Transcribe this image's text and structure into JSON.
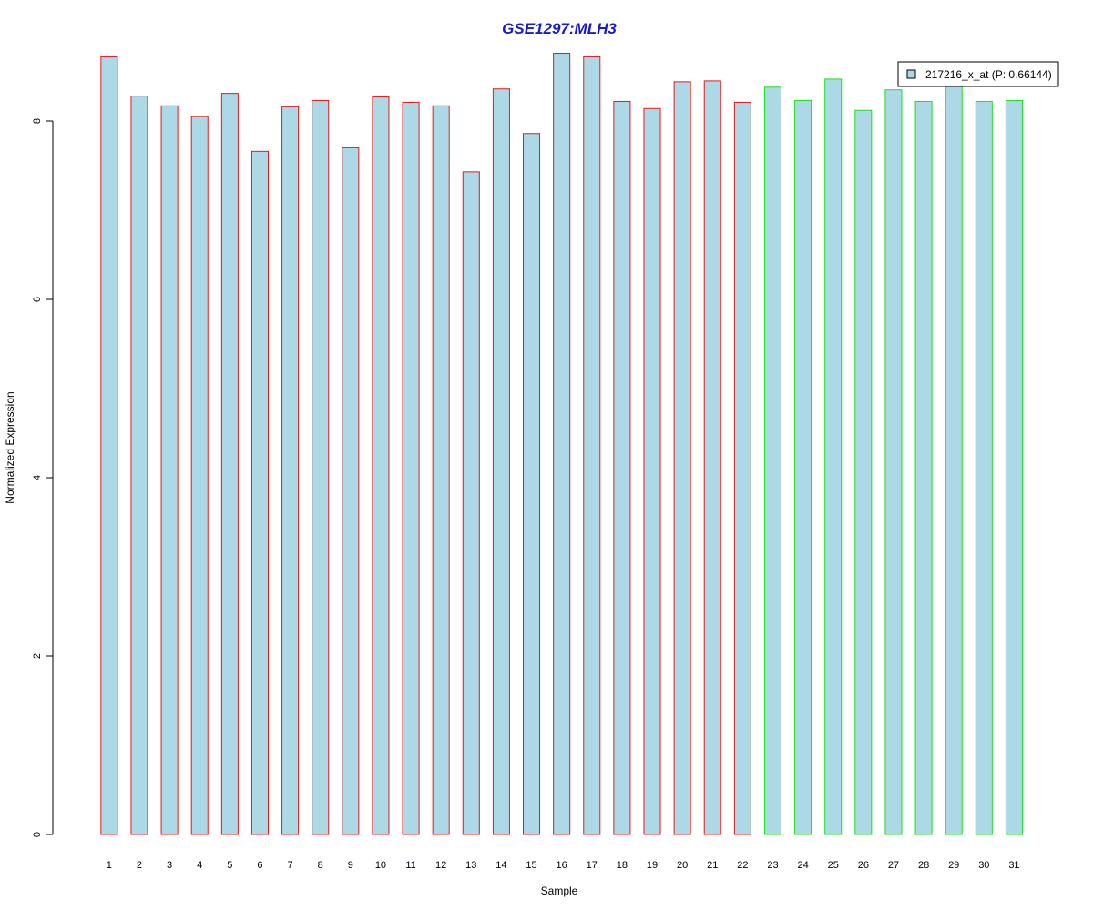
{
  "chart_data": {
    "type": "bar",
    "title": "GSE1297:MLH3",
    "xlabel": "Sample",
    "ylabel": "Normalized Expression",
    "categories": [
      "1",
      "2",
      "3",
      "4",
      "5",
      "6",
      "7",
      "8",
      "9",
      "10",
      "11",
      "12",
      "13",
      "14",
      "15",
      "16",
      "17",
      "18",
      "19",
      "20",
      "21",
      "22",
      "23",
      "24",
      "25",
      "26",
      "27",
      "28",
      "29",
      "30",
      "31"
    ],
    "series": [
      {
        "name": "217216_x_at (P: 0.66144)",
        "values": [
          8.72,
          8.28,
          8.17,
          8.05,
          8.31,
          7.66,
          8.16,
          8.23,
          7.7,
          8.27,
          8.21,
          8.17,
          7.43,
          8.36,
          7.86,
          8.76,
          8.72,
          8.22,
          8.14,
          8.44,
          8.45,
          8.21,
          8.38,
          8.23,
          8.47,
          8.12,
          8.35,
          8.22,
          8.4,
          8.22,
          8.23
        ]
      }
    ],
    "groups": [
      {
        "from": 1,
        "to": 22,
        "border_color": "#e31a1c"
      },
      {
        "from": 23,
        "to": 31,
        "border_color": "#22dd22"
      }
    ],
    "bar_fill": "#add8e6",
    "title_color": "#1a1acd",
    "yticks": [
      0,
      2,
      4,
      6,
      8
    ],
    "ylim": [
      0,
      8.8
    ],
    "legend_position": "top-right",
    "grid": false
  }
}
